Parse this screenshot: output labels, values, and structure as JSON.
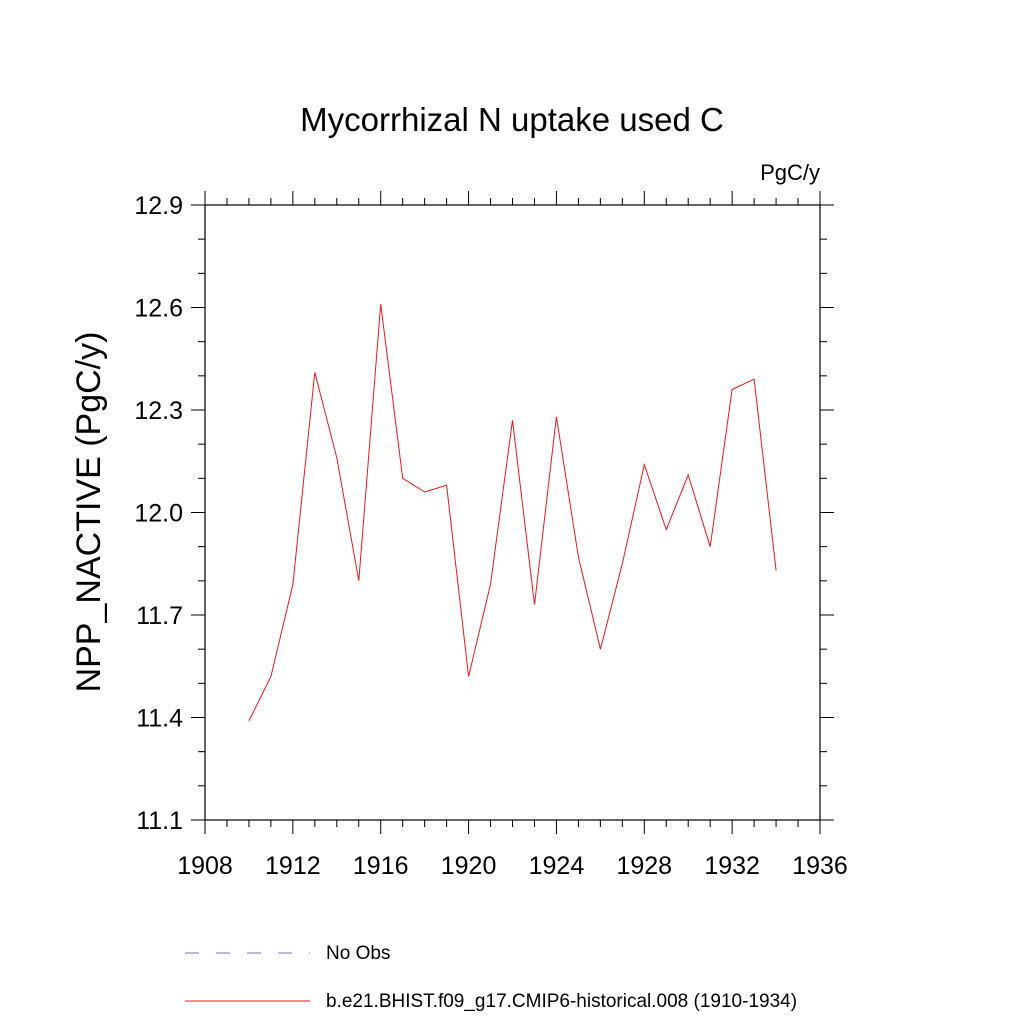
{
  "chart_data": {
    "type": "line",
    "title": "Mycorrhizal N uptake used C",
    "units_label": "PgC/y",
    "ylabel": "NPP_NACTIVE  (PgC/y)",
    "xlabel": "",
    "xlim": [
      1908,
      1936
    ],
    "ylim": [
      11.1,
      12.9
    ],
    "x_ticks": [
      1908,
      1912,
      1916,
      1920,
      1924,
      1928,
      1932,
      1936
    ],
    "y_ticks": [
      11.1,
      11.4,
      11.7,
      12.0,
      12.3,
      12.6,
      12.9
    ],
    "y_tick_labels": [
      "11.1",
      "11.4",
      "11.7",
      "12.0",
      "12.3",
      "12.6",
      "12.9"
    ],
    "grid": false,
    "legend_position": "bottom",
    "legend": [
      {
        "label": "No Obs",
        "color": "#7b73c8",
        "style": "dashed"
      },
      {
        "label": "b.e21.BHIST.f09_g17.CMIP6-historical.008 (1910-1934)",
        "color": "#e8191e",
        "style": "solid"
      }
    ],
    "series": [
      {
        "name": "b.e21.BHIST.f09_g17.CMIP6-historical.008 (1910-1934)",
        "color": "#e8191e",
        "x": [
          1910,
          1911,
          1912,
          1913,
          1914,
          1915,
          1916,
          1917,
          1918,
          1919,
          1920,
          1921,
          1922,
          1923,
          1924,
          1925,
          1926,
          1927,
          1928,
          1929,
          1930,
          1931,
          1932,
          1933,
          1934
        ],
        "values": [
          11.39,
          11.52,
          11.79,
          12.41,
          12.16,
          11.8,
          12.61,
          12.1,
          12.06,
          12.08,
          11.52,
          11.79,
          12.27,
          11.73,
          12.28,
          11.87,
          11.6,
          11.85,
          12.14,
          11.95,
          12.11,
          11.9,
          12.36,
          12.39,
          11.83
        ]
      }
    ]
  }
}
